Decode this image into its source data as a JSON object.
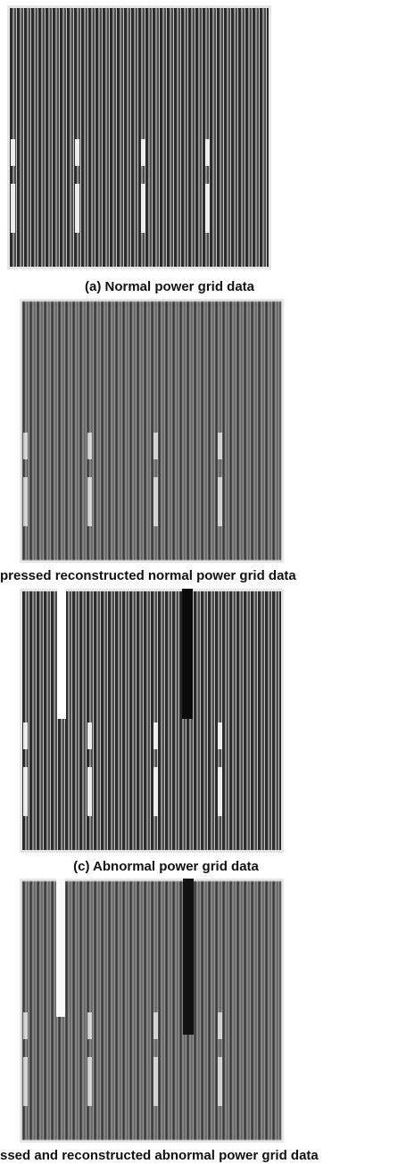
{
  "figures": [
    {
      "caption": "(a) Normal power grid data"
    },
    {
      "caption": "pressed reconstructed normal power grid data"
    },
    {
      "caption": "(c) Abnormal power grid data"
    },
    {
      "caption": "ssed and reconstructed abnormal power grid data"
    }
  ]
}
